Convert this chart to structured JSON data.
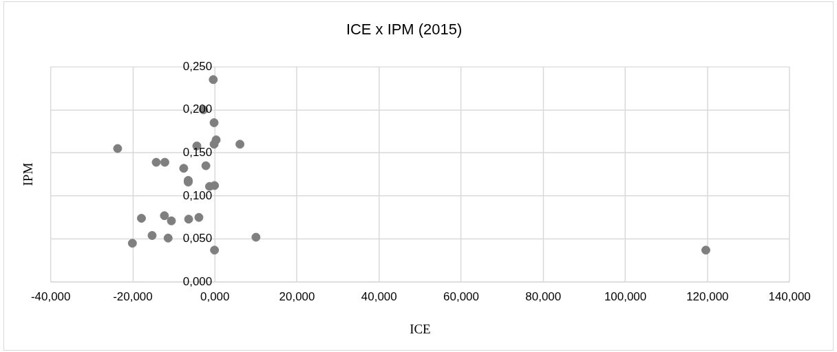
{
  "chart_data": {
    "type": "scatter",
    "title": "ICE x IPM (2015)",
    "xlabel": "ICE",
    "ylabel": "IPM",
    "x": [
      -0.4,
      -2.8,
      -0.2,
      0.3,
      -0.2,
      6.1,
      -4.4,
      -23.7,
      -14.3,
      -12.2,
      -7.6,
      -2.2,
      -6.5,
      -6.5,
      -1.3,
      -0.1,
      -17.9,
      -12.3,
      -10.6,
      -6.4,
      -3.9,
      -15.3,
      -11.4,
      -20.1,
      10.0,
      -0.1,
      119.6
    ],
    "values": [
      0.235,
      0.2,
      0.185,
      0.165,
      0.16,
      0.16,
      0.158,
      0.155,
      0.139,
      0.139,
      0.132,
      0.135,
      0.118,
      0.116,
      0.111,
      0.112,
      0.074,
      0.077,
      0.071,
      0.073,
      0.075,
      0.054,
      0.051,
      0.045,
      0.052,
      0.037,
      0.037
    ],
    "color": "#7f7f7f",
    "marker": "circle",
    "grid": true,
    "xlim": [
      -40,
      140
    ],
    "xticks": [
      {
        "value": -40,
        "label": "-40,000"
      },
      {
        "value": -20,
        "label": "-20,000"
      },
      {
        "value": 0,
        "label": "0,000"
      },
      {
        "value": 20,
        "label": "20,000"
      },
      {
        "value": 40,
        "label": "40,000"
      },
      {
        "value": 60,
        "label": "60,000"
      },
      {
        "value": 80,
        "label": "80,000"
      },
      {
        "value": 100,
        "label": "100,000"
      },
      {
        "value": 120,
        "label": "120,000"
      },
      {
        "value": 140,
        "label": "140,000"
      }
    ],
    "ylim": [
      0,
      0.25
    ],
    "yticks": [
      {
        "value": 0,
        "label": "0,000"
      },
      {
        "value": 0.05,
        "label": "0,050"
      },
      {
        "value": 0.1,
        "label": "0,100"
      },
      {
        "value": 0.15,
        "label": "0,150"
      },
      {
        "value": 0.2,
        "label": "0,200"
      },
      {
        "value": 0.25,
        "label": "0,250"
      }
    ]
  }
}
